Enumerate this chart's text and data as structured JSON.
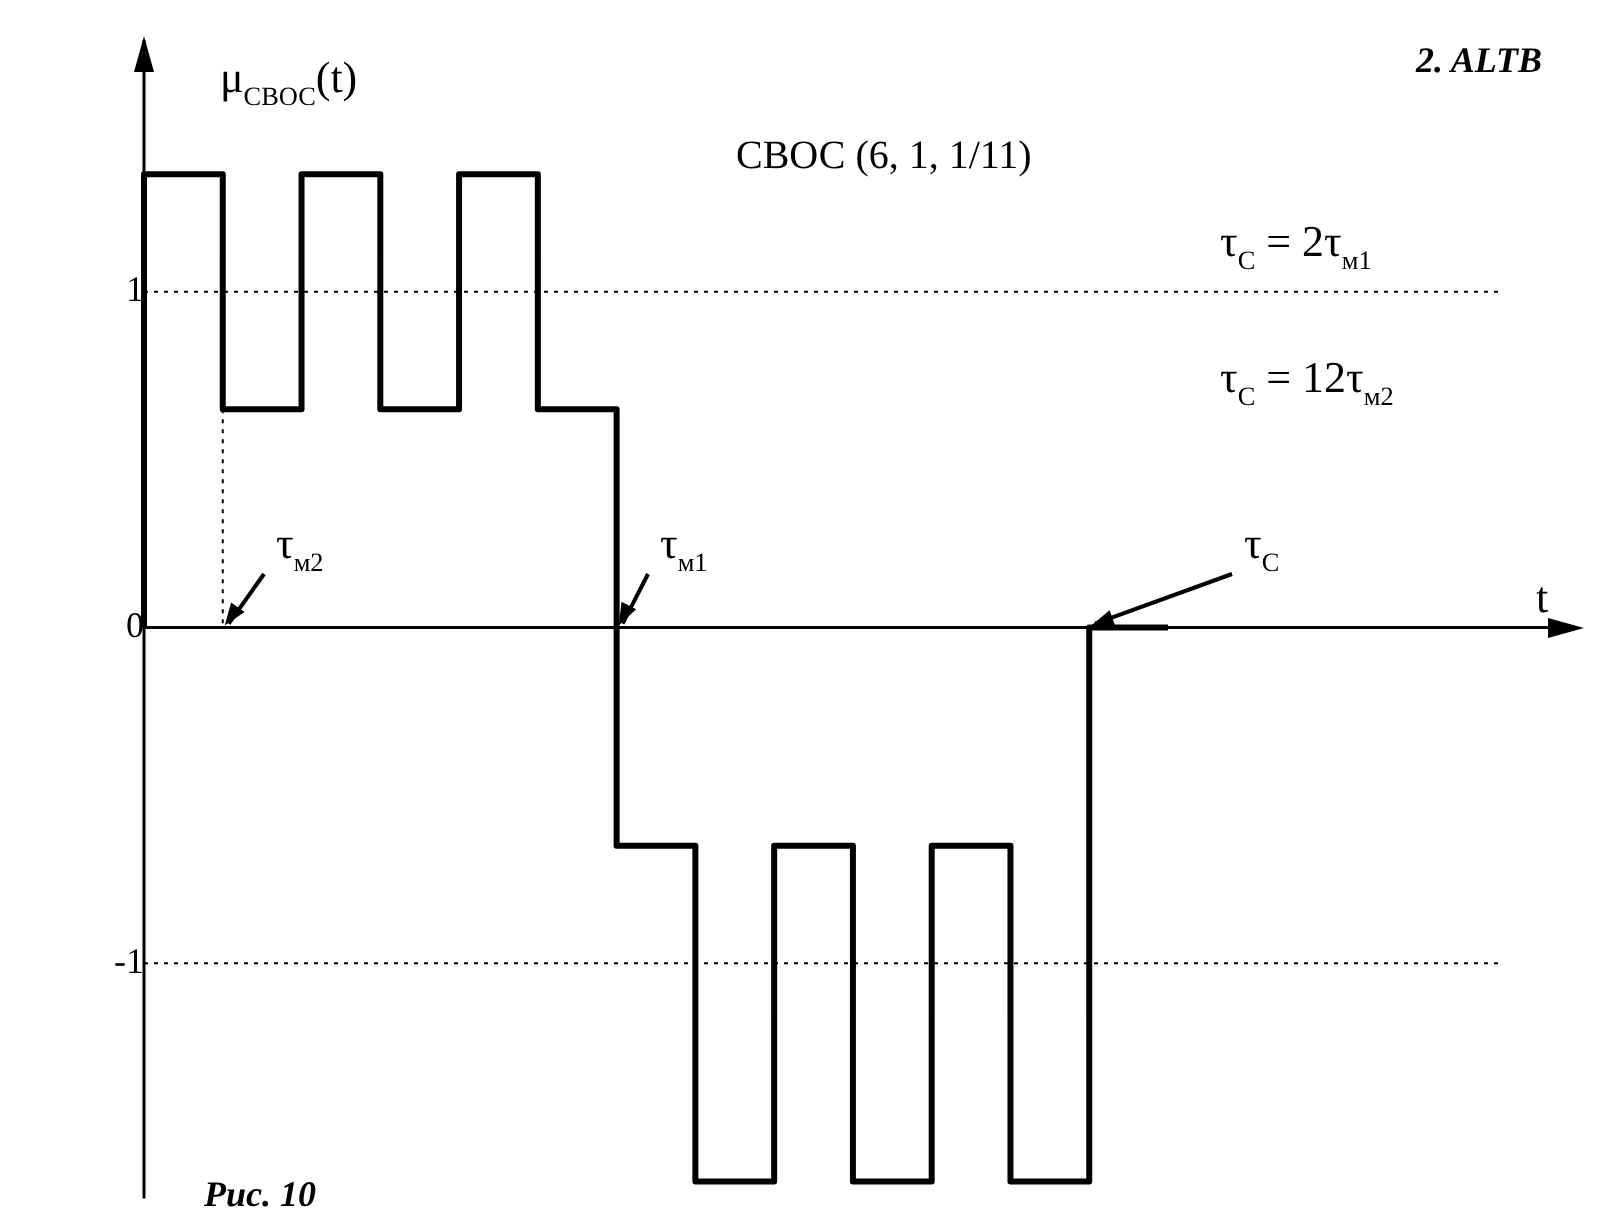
{
  "chart_data": {
    "type": "step",
    "title": "СВОС (6, 1, 1/11)",
    "ylabel": "μ$_{СВОС}$(t)",
    "annotations": [
      "τ$_{м2}$",
      "τ$_{м1}$",
      "τ$_{С}$",
      "τ$_{С}$ = 2τ$_{м1}$",
      "τ$_{С}$ = 12τ$_{м2}$",
      "Рис. 10",
      "2. ALTB",
      "t"
    ],
    "categories": [
      null,
      null,
      null,
      null,
      null,
      null,
      null,
      null,
      null,
      null,
      null,
      null,
      null,
      null
    ],
    "ylim": [
      -1.7,
      1.75
    ],
    "yticks": [
      -1,
      0,
      1
    ],
    "tick_labels": "y",
    "grid": false,
    "legend": false,
    "marker": "none",
    "series": [
      {
        "color": "#000000",
        "values": [
          0,
          1.35,
          0.65,
          1.35,
          0.65,
          1.35,
          0.65,
          -0.65,
          -1.65,
          -0.65,
          -1.65,
          -0.65,
          -1.65,
          0
        ]
      }
    ],
    "ref_lines": [
      {
        "axis": "y",
        "value": 1,
        "line_style": "dotted",
        "color": "#000000"
      },
      {
        "axis": "y",
        "value": -1,
        "line_style": "dotted",
        "color": "#000000"
      }
    ]
  }
}
